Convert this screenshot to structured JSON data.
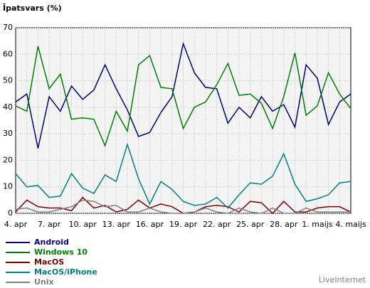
{
  "chart_data": {
    "type": "line",
    "title": "Īpatsvars (%)",
    "source": "LiveInternet",
    "categories": [
      "4. apr",
      null,
      null,
      "7. apr",
      null,
      null,
      "10. apr",
      null,
      null,
      "13. apr",
      null,
      null,
      "16. apr",
      null,
      null,
      "19. apr",
      null,
      null,
      "22. apr",
      null,
      null,
      "25. apr",
      null,
      null,
      "28. apr",
      null,
      null,
      "1. maijs",
      null,
      null,
      "4. maijs"
    ],
    "series": [
      {
        "name": "Android",
        "color": "#000080",
        "values": [
          42,
          45,
          24.5,
          44,
          38.5,
          48,
          43,
          46.5,
          56,
          47,
          39,
          29,
          30.5,
          38,
          44,
          64,
          53,
          47.5,
          47,
          34,
          40,
          36,
          44,
          38.5,
          41,
          32.5,
          56,
          51,
          33.5,
          42,
          45
        ]
      },
      {
        "name": "Windows 10",
        "color": "#008000",
        "values": [
          40.5,
          38.5,
          63,
          47,
          52.5,
          35.5,
          36,
          35.5,
          25.5,
          38.5,
          31,
          56,
          59.5,
          47.5,
          47,
          32,
          40,
          42,
          48.5,
          56.5,
          44.5,
          45,
          41.5,
          32,
          44,
          60.5,
          37,
          40.5,
          53,
          45,
          39.5
        ]
      },
      {
        "name": "MacOS",
        "color": "#800000",
        "values": [
          0.5,
          5,
          2.5,
          2,
          2,
          1,
          6,
          2,
          3,
          0.5,
          1.5,
          5,
          2,
          3.5,
          2.5,
          0,
          0.5,
          2.5,
          3,
          2.5,
          0.5,
          4.5,
          4,
          0,
          4.5,
          0.5,
          0.5,
          2,
          2.5,
          2.5,
          0.5
        ]
      },
      {
        "name": "MacOS/iPhone",
        "color": "#008080",
        "values": [
          15,
          10,
          10.5,
          6,
          6.5,
          15,
          9.5,
          7.5,
          14.5,
          12,
          26,
          13,
          3.5,
          12,
          9,
          4.5,
          3,
          3.5,
          6,
          2,
          7,
          11.5,
          11,
          14,
          22.5,
          11,
          4.5,
          5.5,
          7,
          11.5,
          12
        ]
      },
      {
        "name": "Unix",
        "color": "#808080",
        "values": [
          1.5,
          2,
          0.5,
          0.5,
          1.5,
          2.5,
          5,
          4.5,
          2.5,
          3,
          0.5,
          0.5,
          2,
          0.5,
          0,
          0,
          0.5,
          2,
          0.5,
          0,
          2,
          0.5,
          0,
          2,
          0,
          0,
          2,
          0.5,
          0.5,
          0.5,
          0.5
        ]
      }
    ],
    "ylim": [
      0,
      70
    ],
    "yticks": [
      0,
      10,
      20,
      30,
      40,
      50,
      60,
      70
    ],
    "grid": true,
    "xgrid": true
  }
}
